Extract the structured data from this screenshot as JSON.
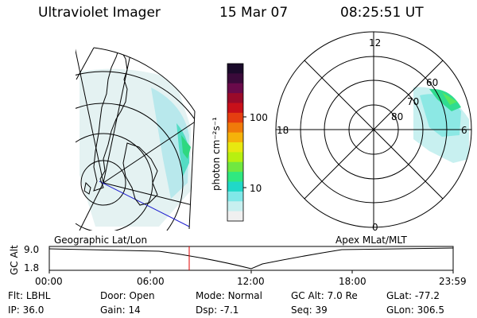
{
  "header": {
    "instrument": "Ultraviolet Imager",
    "date": "15 Mar 07",
    "time": "08:25:51 UT"
  },
  "colorbar": {
    "unit_label": "photon cm⁻²s⁻¹",
    "ticks": [
      "100",
      "10"
    ],
    "colors": [
      "#1a0a2a",
      "#3a0a3a",
      "#6a0a4a",
      "#9a0a2a",
      "#c8101a",
      "#e53e10",
      "#f07a0a",
      "#f5b20a",
      "#e8e810",
      "#b8f010",
      "#70e840",
      "#30e880",
      "#20d8c8",
      "#80e8e8",
      "#c8f0f0",
      "#f0f0f0"
    ]
  },
  "left_map": {
    "caption": "Geographic Lat/Lon"
  },
  "right_map": {
    "caption": "Apex MLat/MLT",
    "mlt_labels": {
      "top": "12",
      "left": "18",
      "right": "6",
      "bottom": "0"
    },
    "mlat_labels": [
      "60",
      "70",
      "80"
    ]
  },
  "altitude_plot": {
    "ylabel": "GC Alt",
    "yticks": [
      "9.0",
      "1.8"
    ],
    "xticks": [
      "00:00",
      "06:00",
      "12:00",
      "18:00",
      "23:59"
    ],
    "current_time_color": "#e00000"
  },
  "status": {
    "row1": [
      {
        "label": "Flt:",
        "value": "LBHL"
      },
      {
        "label": "Door:",
        "value": "Open"
      },
      {
        "label": "Mode:",
        "value": "Normal"
      },
      {
        "label": "GC Alt:",
        "value": "7.0 Re"
      },
      {
        "label": "GLat:",
        "value": "-77.2"
      }
    ],
    "row2": [
      {
        "label": "IP:",
        "value": "36.0"
      },
      {
        "label": "Gain:",
        "value": "14"
      },
      {
        "label": "Dsp:",
        "value": "-7.1"
      },
      {
        "label": "Seq:",
        "value": "39"
      },
      {
        "label": "GLon:",
        "value": "306.5"
      }
    ]
  }
}
